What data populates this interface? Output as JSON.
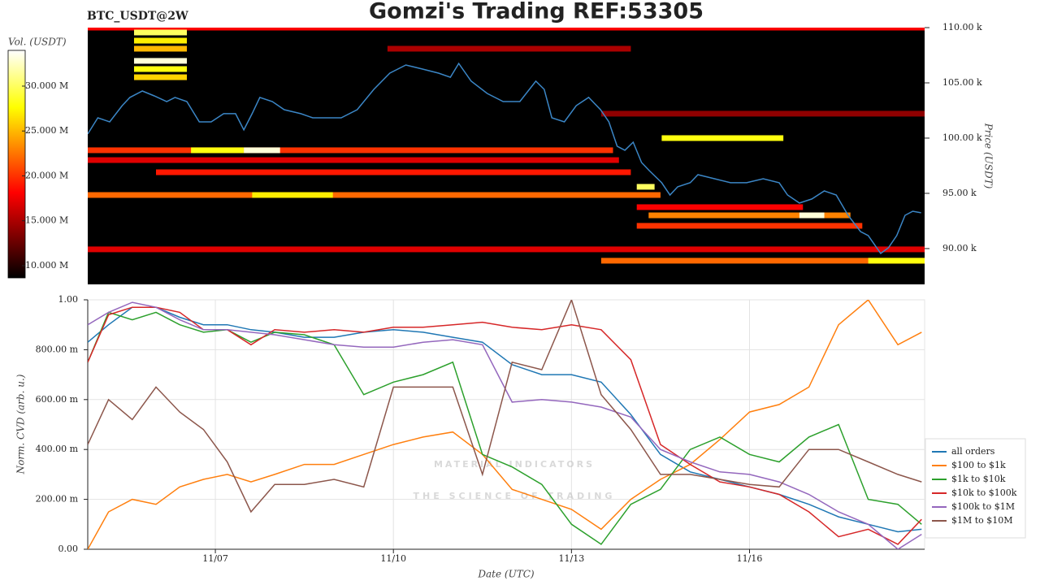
{
  "chart_data": [
    {
      "type": "heatmap",
      "title": "Gomzi's Trading REF:53305",
      "subtitle": "BTC_USDT@2W",
      "ylabel": "Price (USDT)",
      "xlim": [
        4.85,
        18.95
      ],
      "ylim": [
        86760,
        110000
      ],
      "yticks": [
        {
          "value": 90000,
          "label": "90.00 k"
        },
        {
          "value": 95000,
          "label": "95.00 k"
        },
        {
          "value": 100000,
          "label": "100.00 k"
        },
        {
          "value": 105000,
          "label": "105.00 k"
        },
        {
          "value": 110000,
          "label": "110.00 k"
        }
      ],
      "zlabel": "Vol. (USDT)",
      "zlim": [
        8640000,
        33980000
      ],
      "zticks": [
        {
          "value": 10000000,
          "label": "10.000 M"
        },
        {
          "value": 15000000,
          "label": "15.000 M"
        },
        {
          "value": 20000000,
          "label": "20.000 M"
        },
        {
          "value": 25000000,
          "label": "25.000 M"
        },
        {
          "value": 30000000,
          "label": "30.000 M"
        }
      ],
      "cells": [
        {
          "y": 110000,
          "x0": 4.85,
          "x1": 18.95,
          "value": 18000000
        },
        {
          "y": 102210,
          "x0": 13.5,
          "x1": 18.95,
          "value": 14000000
        },
        {
          "y": 108090,
          "x0": 9.9,
          "x1": 14.0,
          "value": 15000000
        },
        {
          "y": 98900,
          "x0": 4.85,
          "x1": 13.7,
          "value": 20000000
        },
        {
          "y": 98900,
          "x0": 6.59,
          "x1": 7.48,
          "value": 28000000
        },
        {
          "y": 98900,
          "x0": 7.48,
          "x1": 8.09,
          "value": 33000000
        },
        {
          "y": 98010,
          "x0": 4.85,
          "x1": 13.8,
          "value": 17000000
        },
        {
          "y": 96910,
          "x0": 6.0,
          "x1": 14.0,
          "value": 19000000
        },
        {
          "y": 94850,
          "x0": 4.85,
          "x1": 14.5,
          "value": 22000000
        },
        {
          "y": 94850,
          "x0": 7.62,
          "x1": 8.98,
          "value": 27000000
        },
        {
          "y": 100000,
          "x0": 14.52,
          "x1": 16.57,
          "value": 28000000
        },
        {
          "y": 109560,
          "x0": 5.63,
          "x1": 6.52,
          "value": 30000000
        },
        {
          "y": 108820,
          "x0": 5.63,
          "x1": 6.52,
          "value": 27000000
        },
        {
          "y": 108090,
          "x0": 5.63,
          "x1": 6.52,
          "value": 25000000
        },
        {
          "y": 106990,
          "x0": 5.63,
          "x1": 6.52,
          "value": 33000000
        },
        {
          "y": 106250,
          "x0": 5.63,
          "x1": 6.52,
          "value": 28000000
        },
        {
          "y": 105510,
          "x0": 5.63,
          "x1": 6.52,
          "value": 26000000
        },
        {
          "y": 89930,
          "x0": 4.85,
          "x1": 18.95,
          "value": 17000000
        },
        {
          "y": 88900,
          "x0": 13.5,
          "x1": 18.95,
          "value": 22000000
        },
        {
          "y": 88900,
          "x0": 18.0,
          "x1": 18.95,
          "value": 28000000
        },
        {
          "y": 93750,
          "x0": 14.1,
          "x1": 16.9,
          "value": 18000000
        },
        {
          "y": 93010,
          "x0": 14.3,
          "x1": 17.7,
          "value": 23000000
        },
        {
          "y": 93010,
          "x0": 16.84,
          "x1": 17.26,
          "value": 33000000
        },
        {
          "y": 92060,
          "x0": 14.1,
          "x1": 17.9,
          "value": 20000000
        },
        {
          "y": 95590,
          "x0": 14.1,
          "x1": 14.4,
          "value": 30000000
        }
      ],
      "x": [
        4.85,
        5.02,
        5.22,
        5.43,
        5.56,
        5.77,
        5.97,
        6.18,
        6.32,
        6.52,
        6.73,
        6.93,
        7.14,
        7.34,
        7.48,
        7.62,
        7.75,
        7.96,
        8.16,
        8.44,
        8.64,
        8.85,
        9.12,
        9.39,
        9.67,
        9.94,
        10.21,
        10.49,
        10.76,
        10.96,
        11.1,
        11.31,
        11.58,
        11.85,
        12.13,
        12.4,
        12.54,
        12.67,
        12.88,
        13.08,
        13.29,
        13.49,
        13.63,
        13.77,
        13.9,
        14.04,
        14.18,
        14.31,
        14.52,
        14.66,
        14.79,
        15.0,
        15.13,
        15.41,
        15.68,
        15.95,
        16.23,
        16.5,
        16.64,
        16.84,
        17.05,
        17.26,
        17.46,
        17.66,
        17.87,
        18.0,
        18.21,
        18.34,
        18.48,
        18.62,
        18.75,
        18.89
      ],
      "series": [
        {
          "color": "#3b86c6",
          "values": [
            100370,
            101840,
            101470,
            102940,
            103680,
            104260,
            103820,
            103310,
            103680,
            103310,
            101470,
            101470,
            102210,
            102210,
            100740,
            102210,
            103680,
            103310,
            102570,
            102210,
            101840,
            101840,
            101840,
            102570,
            104410,
            105880,
            106620,
            106250,
            105880,
            105510,
            106760,
            105150,
            104040,
            103310,
            103310,
            105150,
            104410,
            101840,
            101470,
            102940,
            103680,
            102570,
            101470,
            99260,
            98900,
            99630,
            97790,
            97060,
            95960,
            94850,
            95590,
            95960,
            96690,
            96320,
            95960,
            95960,
            96320,
            95960,
            94850,
            94120,
            94490,
            95220,
            94850,
            93010,
            91540,
            91180,
            89560,
            90070,
            91180,
            93010,
            93380,
            93240
          ]
        }
      ]
    },
    {
      "type": "line",
      "xlabel": "Date (UTC)",
      "ylabel": "Norm. CVD (arb. u.)",
      "grid": true,
      "legend": "right",
      "watermark": [
        "MATERIAL INDICATORS",
        "THE SCIENCE OF TRADING"
      ],
      "xlim": [
        4.85,
        18.95
      ],
      "ylim": [
        0,
        1
      ],
      "xticks": [
        {
          "value": 7,
          "label": "11/07"
        },
        {
          "value": 10,
          "label": "11/10"
        },
        {
          "value": 13,
          "label": "11/13"
        },
        {
          "value": 16,
          "label": "11/16"
        }
      ],
      "yticks": [
        {
          "value": 0,
          "label": "0.00"
        },
        {
          "value": 0.2,
          "label": "200.00 m"
        },
        {
          "value": 0.4,
          "label": "400.00 m"
        },
        {
          "value": 0.6,
          "label": "600.00 m"
        },
        {
          "value": 0.8,
          "label": "800.00 m"
        },
        {
          "value": 1,
          "label": "1.00"
        }
      ],
      "x": [
        4.85,
        5.2,
        5.6,
        6.0,
        6.4,
        6.8,
        7.2,
        7.6,
        8.0,
        8.5,
        9.0,
        9.5,
        10.0,
        10.5,
        11.0,
        11.5,
        12.0,
        12.5,
        13.0,
        13.5,
        14.0,
        14.5,
        15.0,
        15.5,
        16.0,
        16.5,
        17.0,
        17.5,
        18.0,
        18.5,
        18.9
      ],
      "series": [
        {
          "name": "all orders",
          "color": "#1f77b4",
          "values": [
            0.83,
            0.9,
            0.97,
            0.97,
            0.93,
            0.9,
            0.9,
            0.88,
            0.87,
            0.85,
            0.85,
            0.87,
            0.88,
            0.87,
            0.85,
            0.83,
            0.74,
            0.7,
            0.7,
            0.67,
            0.54,
            0.38,
            0.31,
            0.28,
            0.25,
            0.22,
            0.18,
            0.13,
            0.1,
            0.07,
            0.08
          ]
        },
        {
          "name": "$100 to $1k",
          "color": "#ff7f0e",
          "values": [
            0.0,
            0.15,
            0.2,
            0.18,
            0.25,
            0.28,
            0.3,
            0.27,
            0.3,
            0.34,
            0.34,
            0.38,
            0.42,
            0.45,
            0.47,
            0.38,
            0.24,
            0.2,
            0.16,
            0.08,
            0.2,
            0.28,
            0.34,
            0.44,
            0.55,
            0.58,
            0.65,
            0.9,
            1.0,
            0.82,
            0.87
          ]
        },
        {
          "name": "$1k to $10k",
          "color": "#2ca02c",
          "values": [
            0.75,
            0.95,
            0.92,
            0.95,
            0.9,
            0.87,
            0.88,
            0.83,
            0.87,
            0.86,
            0.82,
            0.62,
            0.67,
            0.7,
            0.75,
            0.38,
            0.33,
            0.26,
            0.1,
            0.02,
            0.18,
            0.24,
            0.4,
            0.45,
            0.38,
            0.35,
            0.45,
            0.5,
            0.2,
            0.18,
            0.1
          ]
        },
        {
          "name": "$10k to $100k",
          "color": "#d62728",
          "values": [
            0.75,
            0.94,
            0.97,
            0.97,
            0.95,
            0.88,
            0.88,
            0.82,
            0.88,
            0.87,
            0.88,
            0.87,
            0.89,
            0.89,
            0.9,
            0.91,
            0.89,
            0.88,
            0.9,
            0.88,
            0.76,
            0.42,
            0.34,
            0.27,
            0.25,
            0.22,
            0.15,
            0.05,
            0.08,
            0.02,
            0.12
          ]
        },
        {
          "name": "$100k to $1M",
          "color": "#9467bd",
          "values": [
            0.9,
            0.95,
            0.99,
            0.97,
            0.92,
            0.88,
            0.88,
            0.87,
            0.86,
            0.84,
            0.82,
            0.81,
            0.81,
            0.83,
            0.84,
            0.82,
            0.59,
            0.6,
            0.59,
            0.57,
            0.53,
            0.4,
            0.35,
            0.31,
            0.3,
            0.27,
            0.22,
            0.15,
            0.1,
            0.0,
            0.06
          ]
        },
        {
          "name": "$1M to $10M",
          "color": "#8c564b",
          "values": [
            0.42,
            0.6,
            0.52,
            0.65,
            0.55,
            0.48,
            0.35,
            0.15,
            0.26,
            0.26,
            0.28,
            0.25,
            0.65,
            0.65,
            0.65,
            0.3,
            0.75,
            0.72,
            1.0,
            0.62,
            0.48,
            0.3,
            0.3,
            0.28,
            0.26,
            0.25,
            0.4,
            0.4,
            0.35,
            0.3,
            0.27
          ]
        }
      ]
    }
  ]
}
